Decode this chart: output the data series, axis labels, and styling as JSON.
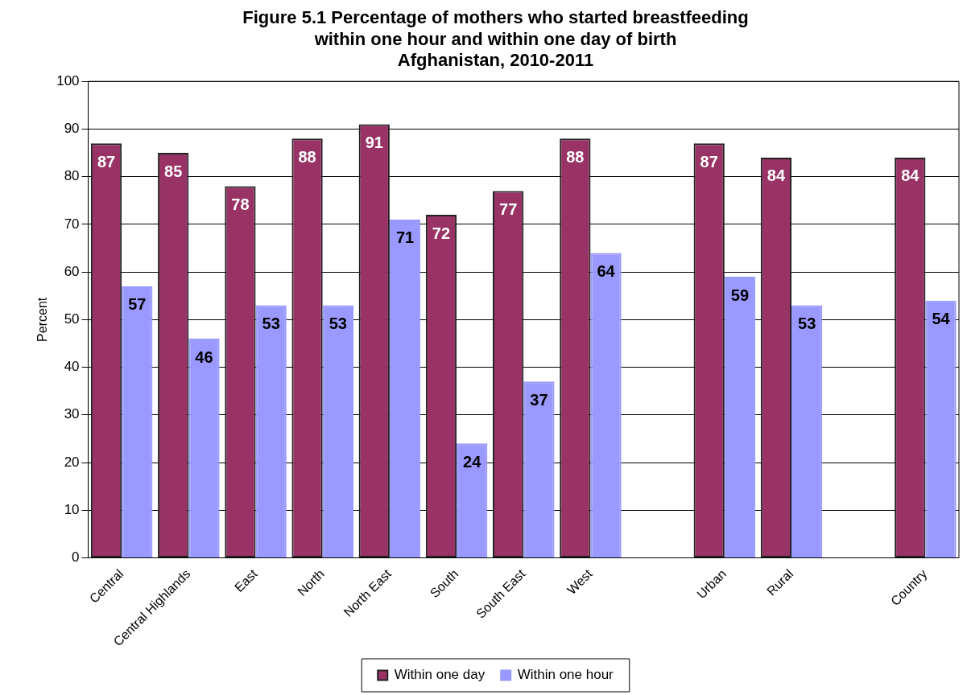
{
  "chart_data": {
    "type": "bar",
    "title": "Figure 5.1 Percentage of mothers who started breastfeeding\nwithin one hour and within one day of birth\nAfghanistan, 2010-2011",
    "ylabel": "Percent",
    "categories": [
      "Central",
      "Central Highlands",
      "East",
      "North",
      "North East",
      "South",
      "South East",
      "West",
      null,
      "Urban",
      "Rural",
      null,
      "Country"
    ],
    "series": [
      {
        "name": "Within one day",
        "color": "#993366",
        "values": [
          87,
          85,
          78,
          88,
          91,
          72,
          77,
          88,
          null,
          87,
          84,
          null,
          84
        ]
      },
      {
        "name": "Within one hour",
        "color": "#9999ff",
        "values": [
          57,
          46,
          53,
          53,
          71,
          24,
          37,
          64,
          null,
          59,
          53,
          null,
          54
        ]
      }
    ],
    "ylim": [
      0,
      100
    ],
    "yticks": [
      0,
      10,
      20,
      30,
      40,
      50,
      60,
      70,
      80,
      90,
      100
    ],
    "grid": "y",
    "legend": "bottom",
    "data_labels": true
  }
}
